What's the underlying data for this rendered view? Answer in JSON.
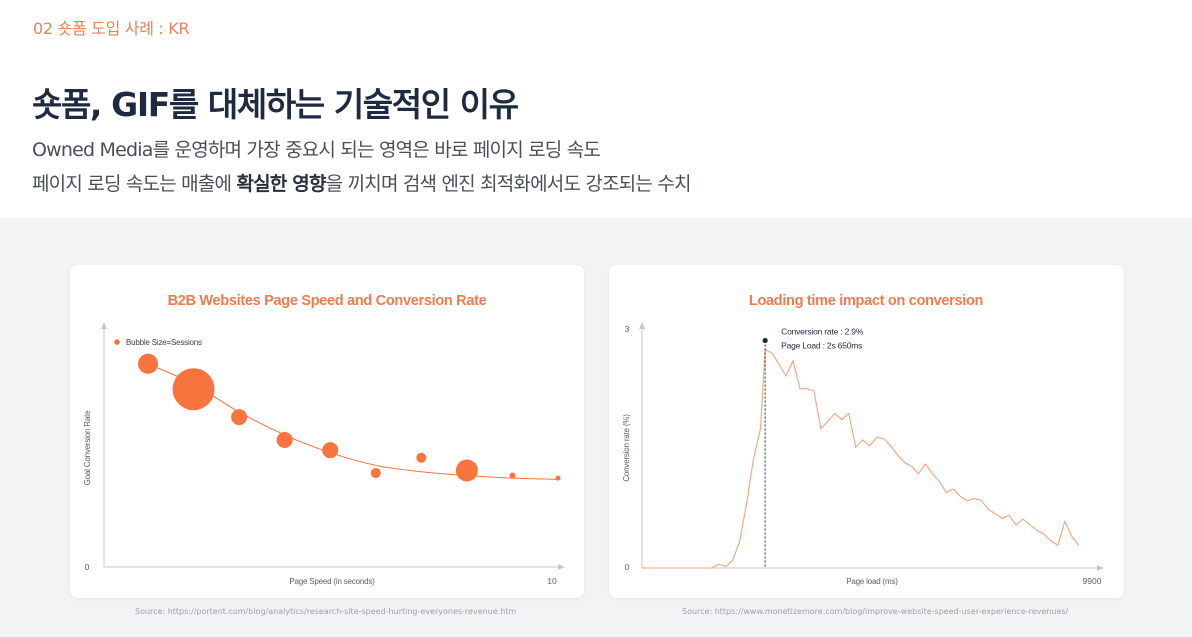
{
  "header": {
    "section_label": "02  숏폼 도입 사례 : KR",
    "headline": "숏폼, GIF를 대체하는 기술적인 이유",
    "desc_line1": "Owned Media를 운영하며 가장 중요시 되는 영역은 바로 페이지 로딩 속도",
    "desc_line2_pre": "페이지 로딩 속도는 매출에 ",
    "desc_line2_bold": "확실한 영향",
    "desc_line2_post": "을 끼치며 검색 엔진 최적화에서도 강조되는 수치"
  },
  "chart_data": [
    {
      "type": "scatter",
      "title": "B2B Websites Page Speed and Conversion Rate",
      "xlabel": "Page Speed (in seconds)",
      "ylabel": "Goal Conversion Rate",
      "xlim": [
        0,
        10
      ],
      "ylim": [
        0,
        10
      ],
      "x_tick_labels": [
        "0",
        "10"
      ],
      "legend": "Bubble Size=Sessions",
      "legend_position": "top-left",
      "color": "#f7743f",
      "points": [
        {
          "x": 1.0,
          "y": 8.0,
          "size": 10
        },
        {
          "x": 2.0,
          "y": 7.0,
          "size": 21
        },
        {
          "x": 3.0,
          "y": 5.9,
          "size": 8
        },
        {
          "x": 4.0,
          "y": 5.0,
          "size": 8
        },
        {
          "x": 5.0,
          "y": 4.6,
          "size": 8
        },
        {
          "x": 6.0,
          "y": 3.7,
          "size": 5
        },
        {
          "x": 7.0,
          "y": 4.3,
          "size": 5
        },
        {
          "x": 8.0,
          "y": 3.8,
          "size": 11
        },
        {
          "x": 9.0,
          "y": 3.6,
          "size": 3
        },
        {
          "x": 10.0,
          "y": 3.5,
          "size": 2.5
        }
      ],
      "trend": [
        [
          1.0,
          8.0
        ],
        [
          2.0,
          7.2
        ],
        [
          3.0,
          6.1
        ],
        [
          4.0,
          5.2
        ],
        [
          5.0,
          4.5
        ],
        [
          6.0,
          4.0
        ],
        [
          7.0,
          3.75
        ],
        [
          8.0,
          3.6
        ],
        [
          9.0,
          3.5
        ],
        [
          10.0,
          3.45
        ]
      ],
      "source": "Source: https://portent.com/blog/analytics/research-site-speed-hurting-everyones-revenue.htm"
    },
    {
      "type": "line",
      "title": "Loading time impact on conversion",
      "xlabel": "Page load (ms)",
      "ylabel": "Conversion rate (%)",
      "xlim": [
        0,
        9900
      ],
      "ylim": [
        0,
        3
      ],
      "x_tick_labels": [
        "",
        "9900"
      ],
      "y_tick_labels": [
        "0",
        "3"
      ],
      "color": "#f5a37c",
      "annotation": {
        "x": 2650,
        "y": 2.9,
        "line1": "Conversion rate : 2.9%",
        "line2": "Page Load : 2s 650ms"
      },
      "series": [
        {
          "x": [
            0,
            1500,
            1650,
            1800,
            1950,
            2100,
            2250,
            2400,
            2550,
            2650,
            2800,
            2950,
            3100,
            3250,
            3400,
            3550,
            3700,
            3850,
            4000,
            4150,
            4300,
            4450,
            4600,
            4750,
            4900,
            5050,
            5200,
            5350,
            5500,
            5650,
            5800,
            5950,
            6100,
            6250,
            6400,
            6550,
            6700,
            6850,
            7000,
            7150,
            7300,
            7450,
            7600,
            7750,
            7900,
            8050,
            8200,
            8350,
            8500,
            8650,
            8800,
            8950,
            9100,
            9250,
            9400
          ],
          "y": [
            0,
            0,
            0.05,
            0.02,
            0.1,
            0.35,
            0.85,
            1.45,
            1.85,
            2.9,
            2.85,
            2.7,
            2.55,
            2.75,
            2.38,
            2.38,
            2.35,
            1.85,
            1.95,
            2.05,
            1.97,
            2.05,
            1.6,
            1.7,
            1.62,
            1.73,
            1.72,
            1.62,
            1.5,
            1.4,
            1.35,
            1.25,
            1.38,
            1.25,
            1.15,
            1.0,
            1.05,
            0.95,
            0.89,
            0.92,
            0.9,
            0.78,
            0.72,
            0.66,
            0.7,
            0.57,
            0.65,
            0.57,
            0.5,
            0.45,
            0.36,
            0.3,
            0.62,
            0.42,
            0.3
          ]
        }
      ],
      "source": "Source: https://www.monetizemore.com/blog/improve-website-speed-user-experience-revenues/"
    }
  ]
}
